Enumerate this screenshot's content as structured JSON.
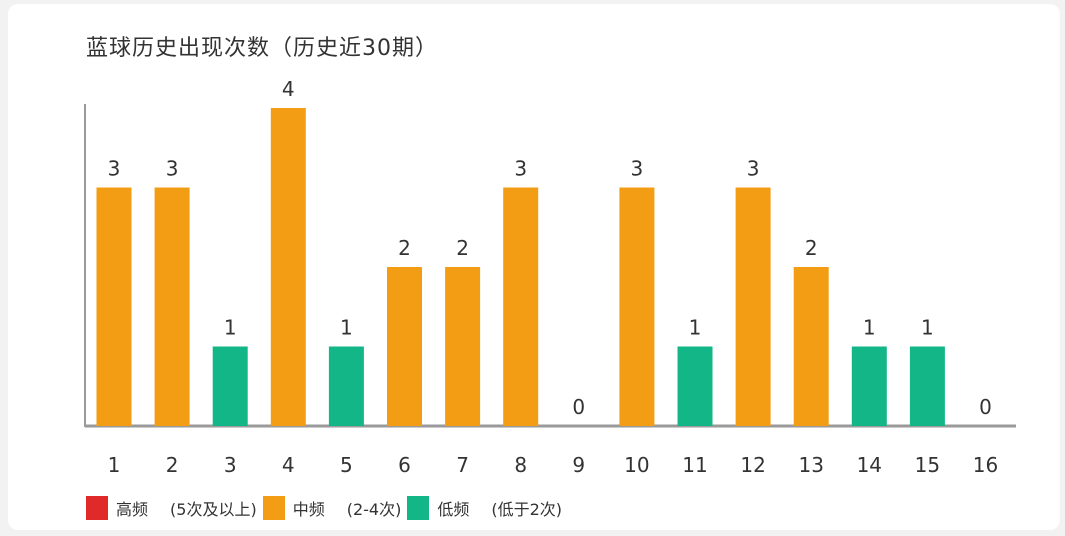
{
  "chart_data": {
    "type": "bar",
    "title": "蓝球历史出现次数（历史近30期）",
    "categories": [
      "1",
      "2",
      "3",
      "4",
      "5",
      "6",
      "7",
      "8",
      "9",
      "10",
      "11",
      "12",
      "13",
      "14",
      "15",
      "16"
    ],
    "values": [
      3,
      3,
      1,
      4,
      1,
      2,
      2,
      3,
      0,
      3,
      1,
      3,
      2,
      1,
      1,
      0
    ],
    "ylim": [
      0,
      4
    ],
    "grid": false,
    "legend_position": "bottom-left",
    "legend": [
      {
        "name": "高频",
        "note": "(5次及以上)",
        "color": "#e02a2a",
        "min": 5
      },
      {
        "name": "中频",
        "note": "(2-4次)",
        "color": "#f29d13",
        "min": 2
      },
      {
        "name": "低频",
        "note": "(低于2次)",
        "color": "#13b787",
        "min": 0
      }
    ]
  }
}
